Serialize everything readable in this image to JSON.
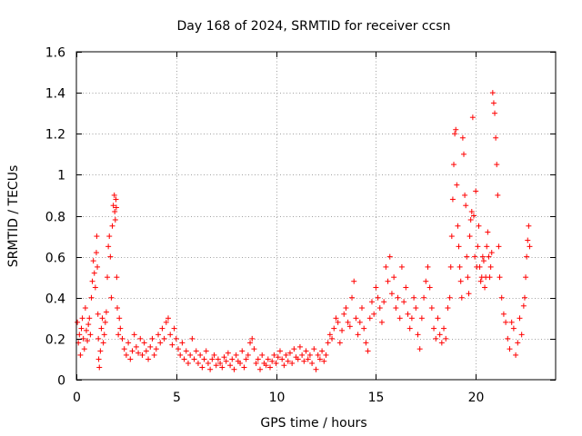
{
  "chart_data": {
    "type": "scatter",
    "title": "Day 168 of 2024, SRMTID for receiver ccsn",
    "xlabel": "GPS time / hours",
    "ylabel": "SRMTID / TECUs",
    "xlim": [
      0,
      24
    ],
    "ylim": [
      0,
      1.6
    ],
    "xticks": [
      0,
      5,
      10,
      15,
      20
    ],
    "yticks": [
      0,
      0.2,
      0.4,
      0.6,
      0.8,
      1,
      1.2,
      1.4,
      1.6
    ],
    "xtick_labels": [
      "0",
      "5",
      "10",
      "15",
      "20"
    ],
    "ytick_labels": [
      "0",
      "0.2",
      "0.4",
      "0.6",
      "0.8",
      "1",
      "1.2",
      "1.4",
      "1.6"
    ],
    "grid": true,
    "marker": "+",
    "color": "#ff0000",
    "series": [
      {
        "name": "SRMTID",
        "note": "dense scatter; representative sample of the plotted points",
        "x": [
          0.05,
          0.1,
          0.15,
          0.2,
          0.25,
          0.3,
          0.35,
          0.4,
          0.45,
          0.5,
          0.55,
          0.6,
          0.65,
          0.7,
          0.75,
          0.8,
          0.85,
          0.9,
          0.95,
          1.0,
          1.02,
          1.05,
          1.08,
          1.1,
          1.12,
          1.15,
          1.2,
          1.25,
          1.3,
          1.35,
          1.4,
          1.45,
          1.5,
          1.55,
          1.6,
          1.65,
          1.7,
          1.75,
          1.8,
          1.85,
          1.9,
          1.92,
          1.95,
          1.98,
          2.0,
          2.02,
          2.05,
          2.1,
          2.15,
          2.2,
          2.3,
          2.4,
          2.5,
          2.6,
          2.7,
          2.8,
          2.9,
          3.0,
          3.1,
          3.2,
          3.3,
          3.4,
          3.5,
          3.6,
          3.7,
          3.8,
          3.9,
          4.0,
          4.1,
          4.2,
          4.3,
          4.4,
          4.5,
          4.6,
          4.7,
          4.8,
          4.9,
          5.0,
          5.1,
          5.2,
          5.3,
          5.4,
          5.5,
          5.6,
          5.7,
          5.8,
          5.9,
          6.0,
          6.1,
          6.2,
          6.3,
          6.4,
          6.5,
          6.6,
          6.7,
          6.8,
          6.9,
          7.0,
          7.1,
          7.2,
          7.3,
          7.4,
          7.5,
          7.6,
          7.7,
          7.8,
          7.9,
          8.0,
          8.1,
          8.2,
          8.3,
          8.4,
          8.5,
          8.6,
          8.7,
          8.8,
          8.9,
          9.0,
          9.1,
          9.2,
          9.3,
          9.4,
          9.5,
          9.6,
          9.7,
          9.8,
          9.9,
          10.0,
          10.1,
          10.2,
          10.3,
          10.4,
          10.5,
          10.6,
          10.7,
          10.8,
          10.9,
          11.0,
          11.1,
          11.2,
          11.3,
          11.4,
          11.5,
          11.6,
          11.7,
          11.8,
          11.9,
          12.0,
          12.1,
          12.2,
          12.3,
          12.4,
          12.5,
          12.6,
          12.7,
          12.8,
          12.9,
          13.0,
          13.1,
          13.2,
          13.3,
          13.4,
          13.5,
          13.6,
          13.7,
          13.8,
          13.9,
          14.0,
          14.1,
          14.2,
          14.3,
          14.4,
          14.5,
          14.6,
          14.7,
          14.8,
          14.9,
          15.0,
          15.1,
          15.2,
          15.3,
          15.4,
          15.5,
          15.6,
          15.7,
          15.8,
          15.9,
          16.0,
          16.1,
          16.2,
          16.3,
          16.4,
          16.5,
          16.6,
          16.7,
          16.8,
          16.9,
          17.0,
          17.1,
          17.2,
          17.3,
          17.4,
          17.5,
          17.6,
          17.7,
          17.8,
          17.9,
          18.0,
          18.1,
          18.2,
          18.3,
          18.4,
          18.5,
          18.6,
          18.7,
          18.75,
          18.8,
          18.85,
          18.9,
          18.95,
          19.0,
          19.05,
          19.1,
          19.15,
          19.2,
          19.25,
          19.3,
          19.35,
          19.4,
          19.45,
          19.5,
          19.55,
          19.6,
          19.65,
          19.7,
          19.75,
          19.8,
          19.85,
          19.9,
          19.95,
          20.0,
          20.05,
          20.1,
          20.15,
          20.2,
          20.25,
          20.3,
          20.35,
          20.4,
          20.45,
          20.5,
          20.55,
          20.6,
          20.65,
          20.7,
          20.75,
          20.8,
          20.85,
          20.9,
          20.95,
          21.0,
          21.05,
          21.1,
          21.15,
          21.2,
          21.3,
          21.4,
          21.5,
          21.6,
          21.7,
          21.8,
          21.9,
          22.0,
          22.1,
          22.2,
          22.3,
          22.4,
          22.45,
          22.5,
          22.55,
          22.6,
          22.65,
          22.7
        ],
        "y": [
          0.28,
          0.18,
          0.22,
          0.12,
          0.25,
          0.3,
          0.2,
          0.15,
          0.35,
          0.24,
          0.19,
          0.27,
          0.3,
          0.22,
          0.4,
          0.48,
          0.58,
          0.52,
          0.45,
          0.62,
          0.7,
          0.55,
          0.32,
          0.2,
          0.1,
          0.06,
          0.14,
          0.25,
          0.3,
          0.18,
          0.22,
          0.28,
          0.33,
          0.5,
          0.65,
          0.7,
          0.6,
          0.4,
          0.75,
          0.85,
          0.9,
          0.82,
          0.78,
          0.88,
          0.84,
          0.5,
          0.35,
          0.22,
          0.3,
          0.25,
          0.2,
          0.15,
          0.12,
          0.18,
          0.1,
          0.14,
          0.22,
          0.16,
          0.13,
          0.2,
          0.12,
          0.18,
          0.14,
          0.1,
          0.16,
          0.2,
          0.12,
          0.15,
          0.22,
          0.18,
          0.25,
          0.2,
          0.28,
          0.3,
          0.22,
          0.17,
          0.25,
          0.2,
          0.15,
          0.12,
          0.18,
          0.1,
          0.14,
          0.08,
          0.12,
          0.2,
          0.1,
          0.14,
          0.08,
          0.12,
          0.06,
          0.1,
          0.14,
          0.08,
          0.05,
          0.1,
          0.12,
          0.07,
          0.1,
          0.08,
          0.06,
          0.11,
          0.09,
          0.13,
          0.07,
          0.1,
          0.05,
          0.12,
          0.09,
          0.08,
          0.14,
          0.06,
          0.1,
          0.12,
          0.18,
          0.2,
          0.15,
          0.08,
          0.1,
          0.05,
          0.12,
          0.08,
          0.07,
          0.1,
          0.06,
          0.09,
          0.12,
          0.08,
          0.11,
          0.14,
          0.1,
          0.07,
          0.12,
          0.09,
          0.13,
          0.08,
          0.15,
          0.11,
          0.1,
          0.16,
          0.12,
          0.09,
          0.14,
          0.1,
          0.12,
          0.08,
          0.15,
          0.05,
          0.12,
          0.1,
          0.14,
          0.09,
          0.12,
          0.18,
          0.22,
          0.2,
          0.25,
          0.3,
          0.28,
          0.18,
          0.24,
          0.32,
          0.35,
          0.28,
          0.26,
          0.4,
          0.48,
          0.3,
          0.22,
          0.28,
          0.35,
          0.25,
          0.18,
          0.14,
          0.3,
          0.38,
          0.32,
          0.45,
          0.4,
          0.35,
          0.28,
          0.38,
          0.55,
          0.48,
          0.6,
          0.42,
          0.5,
          0.35,
          0.4,
          0.3,
          0.55,
          0.38,
          0.45,
          0.32,
          0.25,
          0.3,
          0.4,
          0.35,
          0.22,
          0.15,
          0.3,
          0.4,
          0.48,
          0.55,
          0.45,
          0.35,
          0.25,
          0.2,
          0.3,
          0.22,
          0.18,
          0.25,
          0.2,
          0.35,
          0.4,
          0.55,
          0.7,
          0.88,
          1.05,
          1.2,
          1.22,
          0.95,
          0.75,
          0.65,
          0.55,
          0.48,
          0.4,
          1.18,
          1.1,
          0.9,
          0.85,
          0.6,
          0.5,
          0.42,
          0.7,
          0.78,
          0.82,
          1.28,
          0.8,
          0.6,
          0.92,
          0.55,
          0.65,
          0.75,
          0.55,
          0.48,
          0.5,
          0.6,
          0.58,
          0.45,
          0.5,
          0.65,
          0.72,
          0.6,
          0.5,
          0.55,
          0.62,
          1.4,
          1.35,
          1.3,
          1.18,
          1.05,
          0.9,
          0.65,
          0.5,
          0.4,
          0.32,
          0.28,
          0.2,
          0.15,
          0.28,
          0.25,
          0.12,
          0.18,
          0.3,
          0.22,
          0.36,
          0.4,
          0.5,
          0.6,
          0.68,
          0.75,
          0.65
        ]
      }
    ]
  }
}
